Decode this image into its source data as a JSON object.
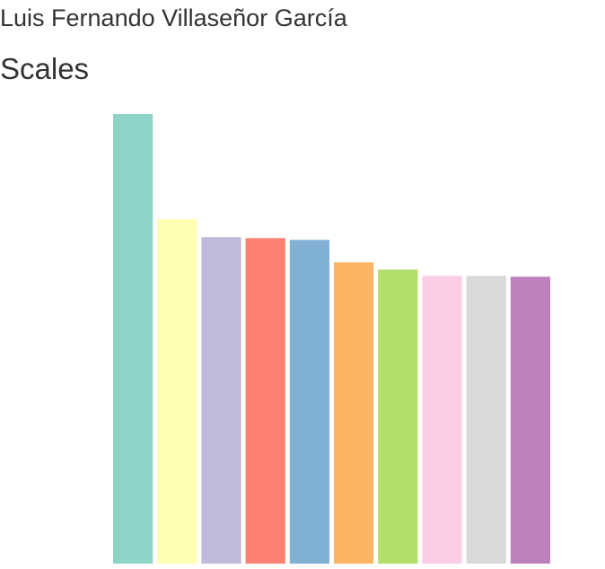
{
  "header": {
    "author": "Luis Fernando Villaseñor García",
    "title": "Scales"
  },
  "chart_data": {
    "type": "bar",
    "title": "",
    "xlabel": "",
    "ylabel": "",
    "grid": false,
    "legend": "none",
    "categories": [
      "",
      "",
      "",
      "",
      "",
      "",
      "",
      "",
      "",
      ""
    ],
    "values": [
      500,
      383,
      363,
      362,
      360,
      335,
      327,
      320,
      320,
      319
    ],
    "ylim": [
      0,
      500
    ],
    "colors": [
      "#8dd3c7",
      "#ffffb3",
      "#bebada",
      "#fb8072",
      "#80b1d3",
      "#fdb462",
      "#b3de69",
      "#fccde5",
      "#d9d9d9",
      "#bc80bd"
    ]
  }
}
